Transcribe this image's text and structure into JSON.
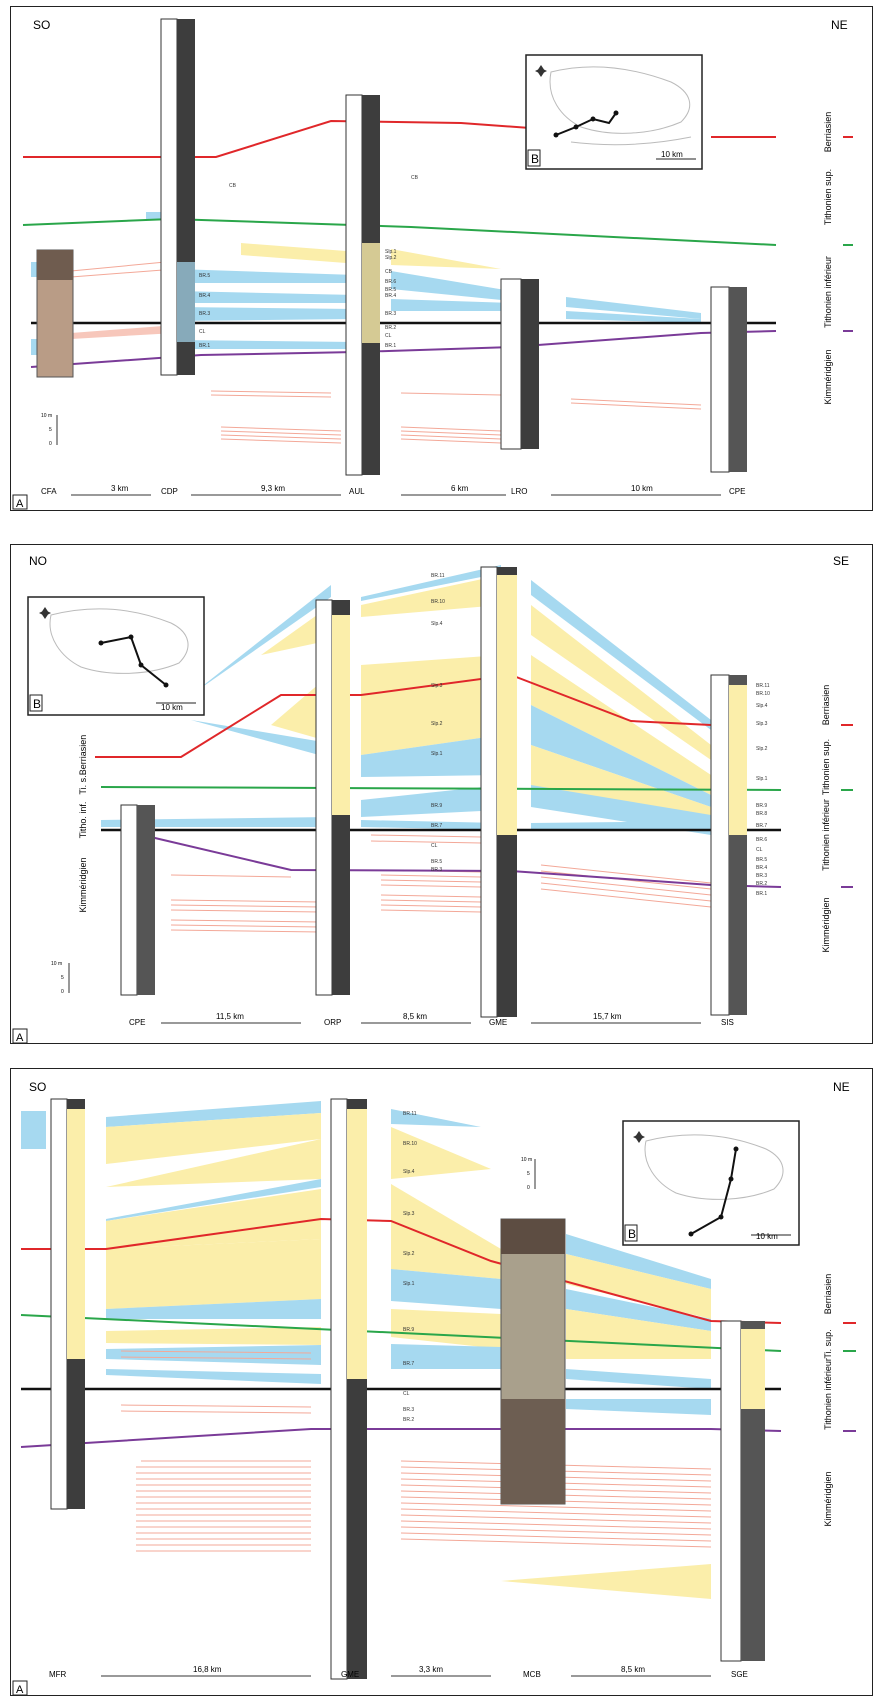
{
  "colors": {
    "blue": "#a6d9f0",
    "yellow": "#fbeeaa",
    "salmon": "#f3a898",
    "red_line": "#e0272a",
    "green_line": "#2aa64a",
    "purple_line": "#7a3b98",
    "black_line": "#111111"
  },
  "panels": [
    {
      "left_orientation": "SO",
      "right_orientation": "NE",
      "panel_letter": "A",
      "inset_letter": "B",
      "inset_scale": "10 km",
      "stages": [
        "Berriasien",
        "Tithonien sup.",
        "Tithonien inférieur",
        "Kimméridgien"
      ],
      "sections": [
        "CFA",
        "CDP",
        "AUL",
        "LRO",
        "CPE"
      ],
      "distances": [
        "3 km",
        "9,3 km",
        "6 km",
        "10 km"
      ],
      "labels": [
        "Slp.1",
        "Slp.2",
        "CB",
        "BR.5",
        "BR.6",
        "BR.4",
        "BR.3",
        "BR.3",
        "BR.4",
        "BR.5",
        "BR.1",
        "BR.2",
        "CL",
        "BR.1",
        "CL",
        "CB",
        "CB"
      ],
      "scale": [
        "10 m",
        "5",
        "0"
      ]
    },
    {
      "left_orientation": "NO",
      "right_orientation": "SE",
      "panel_letter": "A",
      "inset_letter": "B",
      "inset_scale": "10 km",
      "stages_left": [
        "Berriasien",
        "Ti. s.",
        "Titho. inf.",
        "Kimméridgien"
      ],
      "stages_right": [
        "Berriasien",
        "Tithonien sup.",
        "Tithonien inférieur",
        "Kimméridgien"
      ],
      "sections": [
        "CPE",
        "ORP",
        "GME",
        "SIS"
      ],
      "distances": [
        "11,5 km",
        "8,5 km",
        "15,7 km"
      ],
      "labels": [
        "BR.11",
        "BR.10",
        "Slp.4",
        "Slp.3",
        "Slp.2",
        "Slp.1",
        "BR.9",
        "BR.7",
        "CL",
        "BR.5",
        "BR.3",
        "BR.11",
        "BR.10",
        "Slp.4",
        "Slp.3",
        "Slp.2",
        "Slp.1",
        "BR.9",
        "BR.8",
        "BR.7",
        "BR.6",
        "CL",
        "BR.5",
        "BR.4",
        "BR.3",
        "BR.2",
        "BR.1"
      ],
      "scale": [
        "10 m",
        "5",
        "0"
      ]
    },
    {
      "left_orientation": "SO",
      "right_orientation": "NE",
      "panel_letter": "A",
      "inset_letter": "B",
      "inset_scale": "10 km",
      "stages": [
        "Berriasien",
        "Ti. sup.",
        "Tithonien inférieur",
        "Kimméridgien"
      ],
      "sections": [
        "MFR",
        "GME",
        "MCB",
        "SGE"
      ],
      "distances": [
        "16,8 km",
        "3,3 km",
        "8,5 km"
      ],
      "labels": [
        "BR.11",
        "BR.10",
        "Slp.4",
        "Slp.3",
        "Slp.2",
        "Slp.1",
        "BR.9",
        "BR.7",
        "CL",
        "BR.3",
        "BR.2"
      ],
      "scale": [
        "10 m",
        "5",
        "0"
      ]
    }
  ]
}
